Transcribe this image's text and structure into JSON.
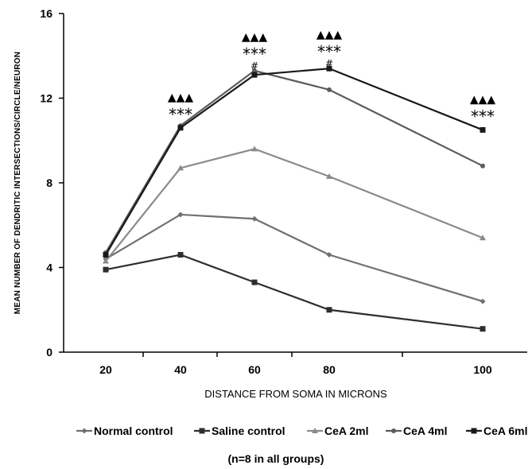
{
  "chart_data": {
    "type": "line",
    "title": "",
    "xlabel": "DISTANCE FROM SOMA IN MICRONS",
    "ylabel": "MEAN NUMBER OF DENDRITIC INTERSECTIONS/CIRCLE/NEURON",
    "note": "(n=8 in all groups)",
    "x": [
      20,
      40,
      60,
      80,
      100
    ],
    "xtick_labels": [
      "20",
      "40",
      "60",
      "80",
      "100"
    ],
    "ylim": [
      0,
      16
    ],
    "yticks": [
      0,
      4,
      8,
      12,
      16
    ],
    "ytick_labels": [
      "0",
      "4",
      "8",
      "12",
      "16"
    ],
    "grid": false,
    "legend_position": "bottom",
    "series": [
      {
        "name": "Normal control",
        "values": [
          4.4,
          6.5,
          6.3,
          4.6,
          2.4
        ],
        "color": "#707070",
        "marker": "diamond"
      },
      {
        "name": "Saline control",
        "values": [
          3.9,
          4.6,
          3.3,
          2.0,
          1.1
        ],
        "color": "#2e2e2e",
        "marker": "square"
      },
      {
        "name": "CeA 2ml",
        "values": [
          4.3,
          8.7,
          9.6,
          8.3,
          5.4
        ],
        "color": "#8a8a8a",
        "marker": "triangle"
      },
      {
        "name": "CeA 4ml",
        "values": [
          4.7,
          10.7,
          13.3,
          12.4,
          8.8
        ],
        "color": "#5c5c5c",
        "marker": "circle"
      },
      {
        "name": "CeA 6ml",
        "values": [
          4.6,
          10.6,
          13.1,
          13.4,
          10.5
        ],
        "color": "#1a1a1a",
        "marker": "square"
      }
    ],
    "annotations": [
      {
        "x": 40,
        "y": 10.6,
        "triangles": "▲▲▲",
        "stars": "***",
        "hash": ""
      },
      {
        "x": 60,
        "y": 13.3,
        "triangles": "▲▲▲",
        "stars": "***",
        "hash": "#"
      },
      {
        "x": 80,
        "y": 13.4,
        "triangles": "▲▲▲",
        "stars": "***",
        "hash": "#"
      },
      {
        "x": 100,
        "y": 10.5,
        "triangles": "▲▲▲",
        "stars": "***",
        "hash": ""
      }
    ]
  }
}
